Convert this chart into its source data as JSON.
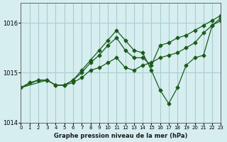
{
  "title": "Graphe pression niveau de la mer (hPa)",
  "bg_color": "#d6eef0",
  "grid_color": "#aacccc",
  "line_color": "#1a5c1a",
  "xlim": [
    0,
    23
  ],
  "ylim": [
    1014,
    1016.4
  ],
  "yticks": [
    1014,
    1015,
    1016
  ],
  "xtick_labels": [
    "0",
    "1",
    "2",
    "3",
    "4",
    "5",
    "6",
    "7",
    "8",
    "9",
    "10",
    "11",
    "12",
    "13",
    "14",
    "15",
    "16",
    "17",
    "18",
    "19",
    "20",
    "21",
    "22",
    "23"
  ],
  "line1_x": [
    0,
    1,
    2,
    3,
    4,
    5,
    6,
    7,
    8,
    9,
    10,
    11,
    12,
    13,
    14,
    15,
    16,
    17,
    18,
    19,
    20,
    21,
    22,
    23
  ],
  "line1_y": [
    1014.7,
    1014.8,
    1014.85,
    1014.85,
    1014.75,
    1014.75,
    1014.8,
    1014.9,
    1015.05,
    1015.1,
    1015.2,
    1015.3,
    1015.1,
    1015.05,
    1015.15,
    1015.2,
    1015.3,
    1015.35,
    1015.4,
    1015.5,
    1015.6,
    1015.8,
    1015.95,
    1016.05
  ],
  "line2_x": [
    0,
    2,
    3,
    4,
    5,
    6,
    7,
    8,
    9,
    10,
    11,
    12,
    13,
    14,
    15,
    16,
    17,
    18,
    19,
    20,
    21,
    22,
    23
  ],
  "line2_y": [
    1014.7,
    1014.85,
    1014.85,
    1014.75,
    1014.75,
    1014.85,
    1015.0,
    1015.2,
    1015.35,
    1015.55,
    1015.7,
    1015.45,
    1015.3,
    1015.3,
    1015.15,
    1015.55,
    1015.6,
    1015.7,
    1015.75,
    1015.85,
    1015.95,
    1016.05,
    1016.15
  ],
  "line3_x": [
    0,
    3,
    4,
    5,
    6,
    7,
    8,
    9,
    10,
    11,
    12,
    13,
    14,
    15,
    16,
    17,
    18,
    19,
    20,
    21,
    22,
    23
  ],
  "line3_y": [
    1014.7,
    1014.85,
    1014.75,
    1014.75,
    1014.85,
    1015.05,
    1015.25,
    1015.45,
    1015.65,
    1015.85,
    1015.65,
    1015.45,
    1015.4,
    1015.05,
    1014.65,
    1014.38,
    1014.7,
    1015.15,
    1015.3,
    1015.35,
    1015.95,
    1016.1
  ]
}
